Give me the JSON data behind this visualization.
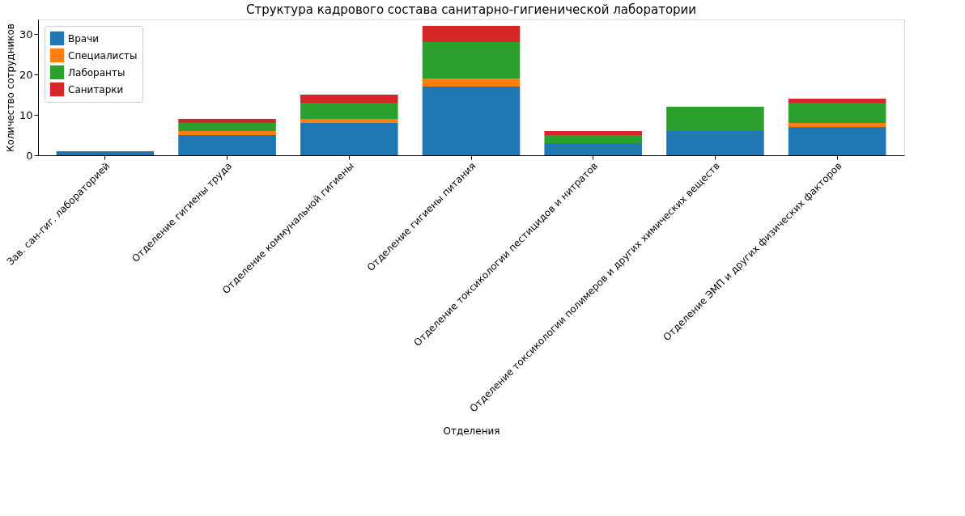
{
  "chart_data": {
    "type": "bar",
    "stacked": true,
    "title": "Структура кадрового состава санитарно-гигиенической лаборатории",
    "xlabel": "Отделения",
    "ylabel": "Количество сотрудников",
    "categories": [
      "Зав. сан-гиг. лабораторией",
      "Отделение гигиены труда",
      "Отделение коммунальной гигиены",
      "Отделение гигиены питания",
      "Отделение токсикологии пестицидов и нитратов",
      "Отделение токсикологии полимеров и других химических веществ",
      "Отделение ЭМП и других физических факторов"
    ],
    "series": [
      {
        "name": "Врачи",
        "color": "#1f77b4",
        "values": [
          1,
          5,
          8,
          17,
          3,
          6,
          7
        ]
      },
      {
        "name": "Специалисты",
        "color": "#ff7f0e",
        "values": [
          0,
          1,
          1,
          2,
          0,
          0,
          1
        ]
      },
      {
        "name": "Лаборанты",
        "color": "#2ca02c",
        "values": [
          0,
          2,
          4,
          9,
          2,
          6,
          5
        ]
      },
      {
        "name": "Санитарки",
        "color": "#d62728",
        "values": [
          0,
          1,
          2,
          4,
          1,
          0,
          1
        ]
      }
    ],
    "ylim": [
      0,
      33.6
    ],
    "yticks": [
      0,
      10,
      20,
      30
    ],
    "grid": false,
    "legend": "top left"
  }
}
